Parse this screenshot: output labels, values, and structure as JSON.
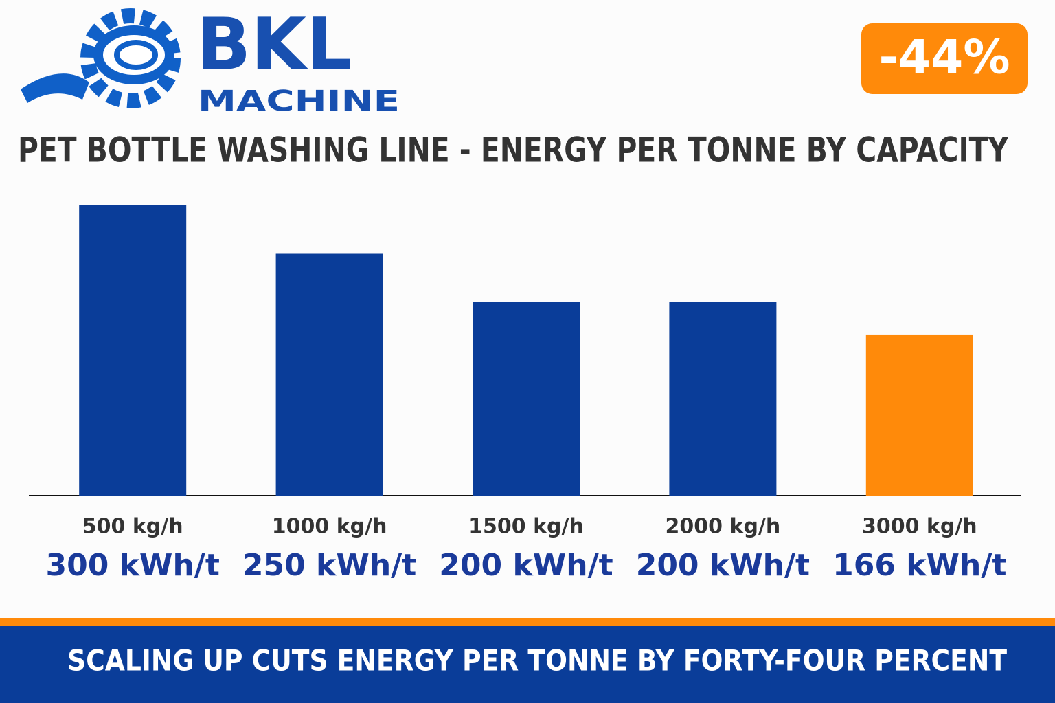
{
  "logo": {
    "name": "BKL",
    "subtitle": "MACHINE"
  },
  "badge": "-44%",
  "chart_data": {
    "type": "bar",
    "title": "PET BOTTLE WASHING LINE - ENERGY PER TONNE BY CAPACITY",
    "categories": [
      "500 kg/h",
      "1000 kg/h",
      "1500 kg/h",
      "2000 kg/h",
      "3000 kg/h"
    ],
    "values": [
      300,
      250,
      200,
      200,
      166
    ],
    "value_labels": [
      "300 kWh/t",
      "250 kWh/t",
      "200 kWh/t",
      "200 kWh/t",
      "166 kWh/t"
    ],
    "colors": [
      "#0a3d99",
      "#0a3d99",
      "#0a3d99",
      "#0a3d99",
      "#ff8a0a"
    ]
  },
  "footer": "SCALING UP CUTS ENERGY PER TONNE BY FORTY-FOUR PERCENT"
}
